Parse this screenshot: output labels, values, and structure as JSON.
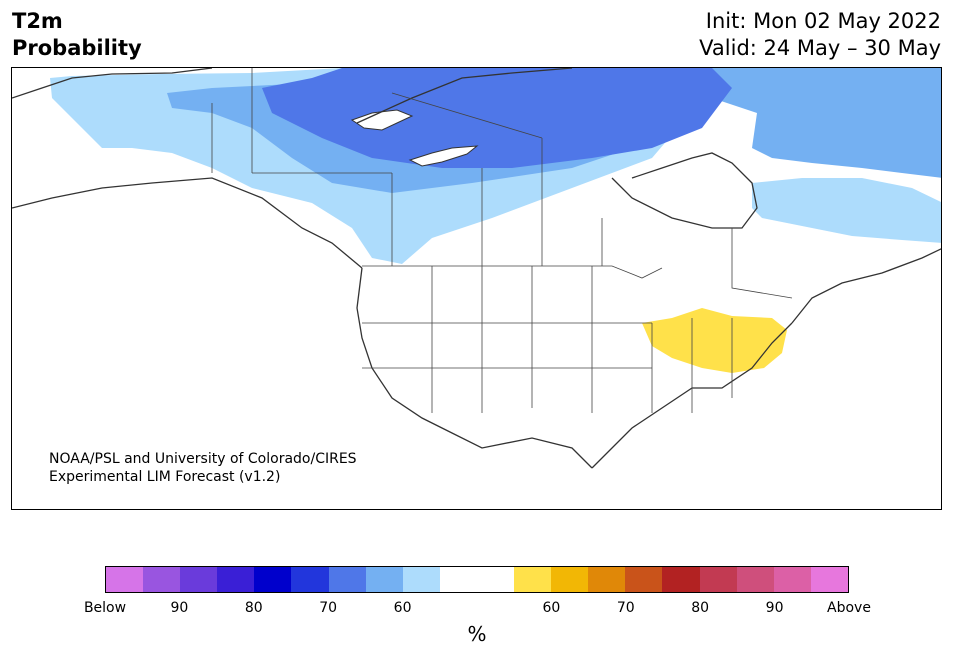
{
  "header": {
    "title_line1": "T2m",
    "title_line2": "Probability",
    "init": "Init: Mon 02 May 2022",
    "valid": "Valid: 24 May – 30 May"
  },
  "credit": {
    "line1": "NOAA/PSL and University of Colorado/CIRES",
    "line2": "Experimental LIM Forecast (v1.2)"
  },
  "legend": {
    "colors": [
      "#d674e8",
      "#9955e0",
      "#6a3bdb",
      "#3a1fd6",
      "#0000cc",
      "#2236dc",
      "#4f77e8",
      "#74b0f2",
      "#addcfc",
      "#ffffff",
      "#ffffff",
      "#ffe14a",
      "#f2b705",
      "#e08808",
      "#c9531a",
      "#b22222",
      "#c23a52",
      "#cf4f7c",
      "#dc60a6",
      "#e777dd"
    ],
    "ticks": [
      "Below",
      "90",
      "80",
      "70",
      "60",
      "60",
      "70",
      "80",
      "90",
      "Above"
    ],
    "units": "%"
  },
  "map": {
    "categories": {
      "below_60": "#addcfc",
      "below_70": "#74b0f2",
      "below_80": "#4f77e8",
      "above_60": "#ffe14a"
    }
  }
}
